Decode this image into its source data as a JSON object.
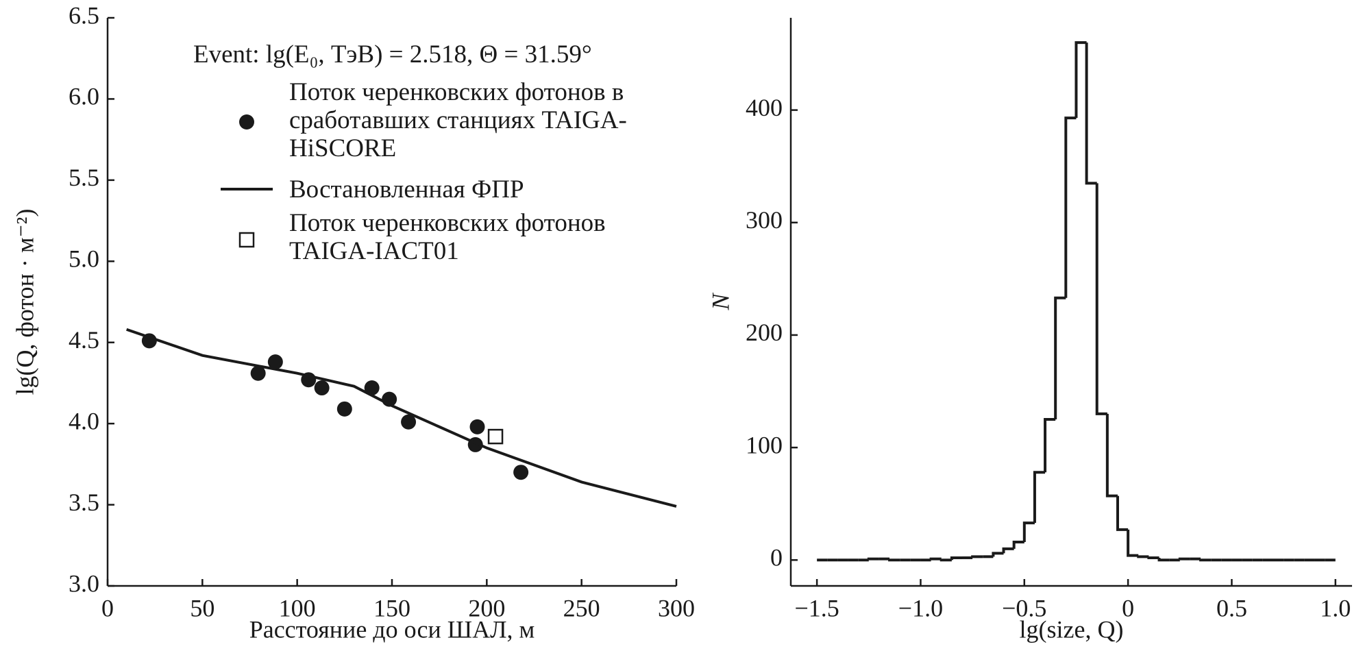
{
  "chart_data": [
    {
      "type": "scatter",
      "annotation": "Event: lg(E₀, ТэВ) = 2.518, Θ = 31.59°",
      "xlabel": "Расстояние до оси ШАЛ, м",
      "ylabel": "lg(Q, фотон · м⁻²)",
      "xlim": [
        0,
        300
      ],
      "ylim": [
        3,
        6.5
      ],
      "xticks": [
        0,
        50,
        100,
        150,
        200,
        250,
        300
      ],
      "yticks": [
        {
          "value": 3,
          "label": "3.0"
        },
        3.5,
        {
          "value": 4,
          "label": "4.0"
        },
        4.5,
        {
          "value": 5,
          "label": "5.0"
        },
        5.5,
        {
          "value": 6,
          "label": "6.0"
        },
        6.5
      ],
      "series": [
        {
          "name": "Поток черенковских фотонов в сработавших станциях TAIGA-HiSCORE",
          "color": "#1a1a1a",
          "marker": "filled-circle",
          "x": [
            22,
            79.4,
            88.5,
            106,
            113,
            125,
            139.4,
            148.6,
            158.7,
            195,
            194,
            218
          ],
          "values": [
            4.51,
            4.31,
            4.38,
            4.27,
            4.22,
            4.09,
            4.22,
            4.15,
            4.01,
            3.98,
            3.87,
            3.7
          ]
        },
        {
          "name": "Востановленная ФПР",
          "color": "#1a1a1a",
          "marker": "line",
          "x": [
            10,
            50,
            100,
            130,
            150,
            175,
            200,
            250,
            300
          ],
          "values": [
            4.58,
            4.42,
            4.31,
            4.23,
            4.11,
            3.98,
            3.85,
            3.64,
            3.49
          ]
        },
        {
          "name": "Поток черенковских фотонов TAIGA-IACT01",
          "color": "#1a1a1a",
          "marker": "open-square",
          "x": [
            204.6
          ],
          "values": [
            3.92
          ]
        }
      ]
    },
    {
      "type": "histogram",
      "xlabel": "lg(size, Q)",
      "ylabel": "N",
      "color": "#1a1a1a",
      "xlim": [
        -1.626,
        1.08
      ],
      "ylim": [
        -23,
        482
      ],
      "xticks": [
        {
          "value": -1.5,
          "label": "−1.5"
        },
        {
          "value": -1,
          "label": "−1.0"
        },
        {
          "value": -0.5,
          "label": "−0.5"
        },
        0,
        0.5,
        {
          "value": 1,
          "label": "1.0"
        }
      ],
      "yticks": [
        0,
        100,
        200,
        300,
        400
      ],
      "bins": [
        -1.5,
        -1.45,
        -1.4,
        -1.35,
        -1.3,
        -1.25,
        -1.2,
        -1.15,
        -1.1,
        -1.05,
        -1,
        -0.95,
        -0.9,
        -0.85,
        -0.8,
        -0.75,
        -0.7,
        -0.65,
        -0.6,
        -0.55,
        -0.5,
        -0.45,
        -0.4,
        -0.35,
        -0.3,
        -0.25,
        -0.2,
        -0.15,
        -0.1,
        -0.05,
        0,
        0.05,
        0.1,
        0.15,
        0.2,
        0.25,
        0.3,
        0.35,
        0.4,
        0.45,
        0.5,
        0.55,
        0.6,
        0.65,
        0.7,
        0.75,
        0.8,
        0.85,
        0.9,
        0.95,
        1
      ],
      "values": [
        0,
        0,
        0,
        0,
        0,
        1,
        1,
        0,
        0,
        0,
        0,
        1,
        0,
        2,
        2,
        3,
        3,
        6,
        10,
        16,
        33,
        78,
        125,
        233,
        393,
        460,
        335,
        130,
        57,
        27,
        4,
        3,
        2,
        0,
        0,
        1,
        1,
        0,
        0,
        0,
        0,
        0,
        0,
        0,
        0,
        0,
        0,
        0,
        0,
        0
      ]
    }
  ]
}
